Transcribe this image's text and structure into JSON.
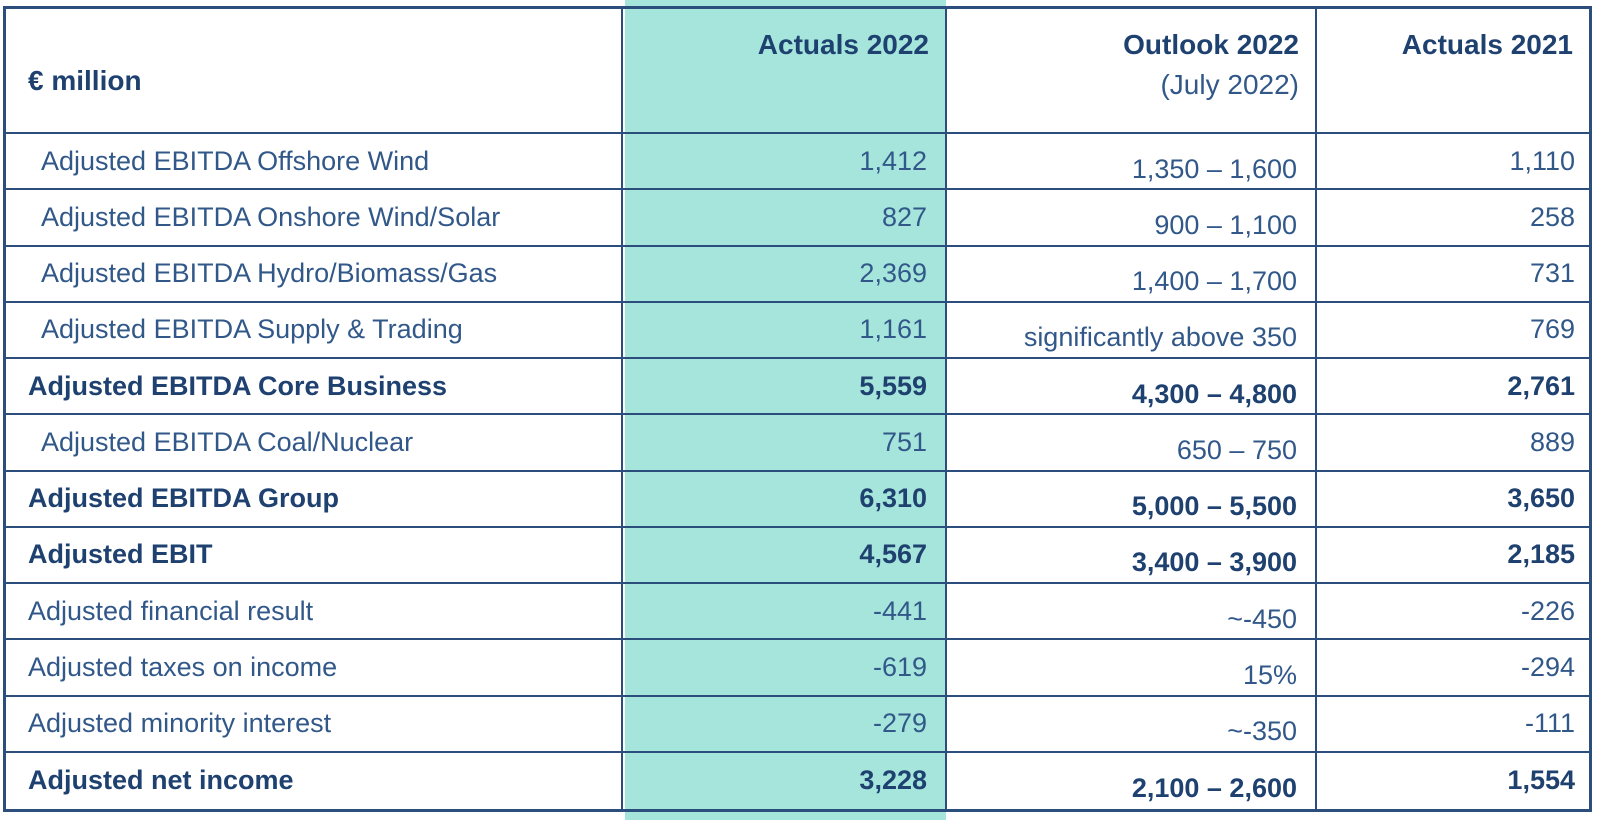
{
  "colors": {
    "highlight_teal": "#A6E5DC",
    "border_navy": "#2C4E7D",
    "text_bold_navy": "#1E4170",
    "text_regular_navy": "#315889"
  },
  "table": {
    "unit_label": "€ million",
    "columns": [
      {
        "label": "Actuals 2022",
        "sublabel": ""
      },
      {
        "label": "Outlook 2022",
        "sublabel": "(July 2022)"
      },
      {
        "label": "Actuals 2021",
        "sublabel": ""
      }
    ],
    "rows": [
      {
        "label": "Adjusted EBITDA Offshore Wind",
        "indent": true,
        "bold": false,
        "actuals_2022": "1,412",
        "outlook_2022": "1,350 – 1,600",
        "actuals_2021": "1,110"
      },
      {
        "label": "Adjusted EBITDA Onshore Wind/Solar",
        "indent": true,
        "bold": false,
        "actuals_2022": "827",
        "outlook_2022": "900 – 1,100",
        "actuals_2021": "258"
      },
      {
        "label": "Adjusted EBITDA Hydro/Biomass/Gas",
        "indent": true,
        "bold": false,
        "actuals_2022": "2,369",
        "outlook_2022": "1,400 – 1,700",
        "actuals_2021": "731"
      },
      {
        "label": "Adjusted EBITDA Supply & Trading",
        "indent": true,
        "bold": false,
        "actuals_2022": "1,161",
        "outlook_2022": "significantly above 350",
        "actuals_2021": "769"
      },
      {
        "label": "Adjusted EBITDA Core Business",
        "indent": false,
        "bold": true,
        "actuals_2022": "5,559",
        "outlook_2022": "4,300 – 4,800",
        "actuals_2021": "2,761"
      },
      {
        "label": "Adjusted EBITDA Coal/Nuclear",
        "indent": true,
        "bold": false,
        "actuals_2022": "751",
        "outlook_2022": "650 – 750",
        "actuals_2021": "889"
      },
      {
        "label": "Adjusted EBITDA Group",
        "indent": false,
        "bold": true,
        "actuals_2022": "6,310",
        "outlook_2022": "5,000 – 5,500",
        "actuals_2021": "3,650"
      },
      {
        "label": "Adjusted EBIT",
        "indent": false,
        "bold": true,
        "actuals_2022": "4,567",
        "outlook_2022": "3,400 – 3,900",
        "actuals_2021": "2,185"
      },
      {
        "label": "Adjusted financial result",
        "indent": false,
        "bold": false,
        "actuals_2022": "-441",
        "outlook_2022": "~-450",
        "actuals_2021": "-226"
      },
      {
        "label": "Adjusted taxes on income",
        "indent": false,
        "bold": false,
        "actuals_2022": "-619",
        "outlook_2022": "15%",
        "actuals_2021": "-294"
      },
      {
        "label": "Adjusted minority interest",
        "indent": false,
        "bold": false,
        "actuals_2022": "-279",
        "outlook_2022": "~-350",
        "actuals_2021": "-111"
      },
      {
        "label": "Adjusted net income",
        "indent": false,
        "bold": true,
        "actuals_2022": "3,228",
        "outlook_2022": "2,100 – 2,600",
        "actuals_2021": "1,554"
      }
    ]
  }
}
